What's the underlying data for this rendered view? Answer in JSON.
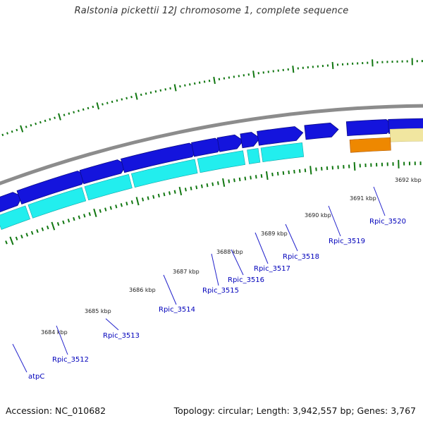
{
  "title": "Ralstonia pickettii 12J chromosome 1, complete sequence",
  "footer": {
    "accession": "Accession: NC_010682",
    "summary": "Topology: circular; Length: 3,942,557 bp; Genes: 3,767"
  },
  "colors": {
    "backbone": "#8c8c8c",
    "forward_gene": "#1414dd",
    "reverse_cds": "#22eeee",
    "rrna_forward": "#f1e6a0",
    "rrna_reverse": "#ee8800",
    "tick": "#117711",
    "label": "#0000bb",
    "connector": "#2222cc"
  },
  "kbp_labels": [
    "3684 kbp",
    "3685 kbp",
    "3686 kbp",
    "3687 kbp",
    "3688 kbp",
    "3689 kbp",
    "3690 kbp",
    "3691 kbp",
    "3692 kbp"
  ],
  "genes": [
    {
      "name": "atpC"
    },
    {
      "name": "Rpic_3512"
    },
    {
      "name": "Rpic_3513"
    },
    {
      "name": "Rpic_3514"
    },
    {
      "name": "Rpic_3515"
    },
    {
      "name": "Rpic_3516"
    },
    {
      "name": "Rpic_3517"
    },
    {
      "name": "Rpic_3518"
    },
    {
      "name": "Rpic_3519"
    },
    {
      "name": "Rpic_3520"
    }
  ]
}
